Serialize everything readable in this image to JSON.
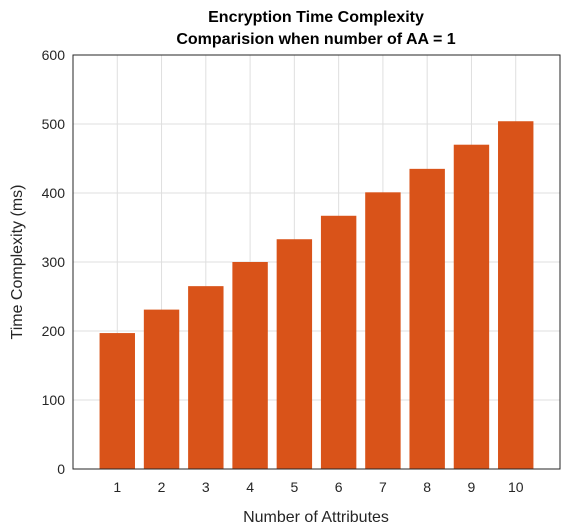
{
  "chart_data": {
    "type": "bar",
    "title": [
      "Encryption Time Complexity",
      "Comparision when number of AA = 1"
    ],
    "xlabel": "Number of Attributes",
    "ylabel": "Time Complexity (ms)",
    "categories": [
      "1",
      "2",
      "3",
      "4",
      "5",
      "6",
      "7",
      "8",
      "9",
      "10"
    ],
    "values": [
      197,
      231,
      265,
      300,
      333,
      367,
      401,
      435,
      470,
      504
    ],
    "ylim": [
      0,
      600
    ],
    "yticks": [
      0,
      100,
      200,
      300,
      400,
      500,
      600
    ],
    "grid": true,
    "bar_color": "#d95319"
  }
}
